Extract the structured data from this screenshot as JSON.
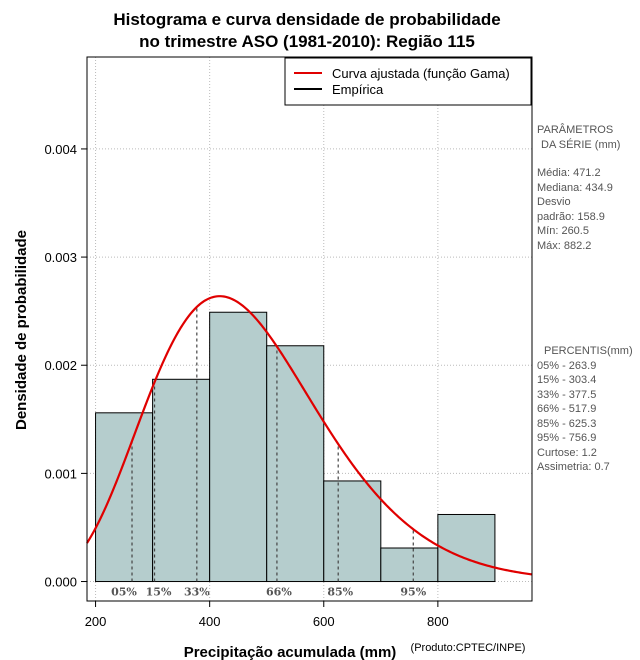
{
  "chart_data": {
    "type": "bar",
    "title_line1": "Histograma e curva densidade de probabilidade",
    "title_line2": "no trimestre ASO (1981-2010): Região 115",
    "xlabel": "Precipitação acumulada (mm)",
    "ylabel": "Densidade de probabilidade",
    "credit": "(Produto:CPTEC/INPE)",
    "xlim": [
      185,
      965
    ],
    "ylim": [
      -0.00018,
      0.00485
    ],
    "x_ticks": [
      200,
      400,
      600,
      800
    ],
    "x_tick_labels": [
      "200",
      "400",
      "600",
      "800"
    ],
    "y_ticks": [
      0.0,
      0.001,
      0.002,
      0.003,
      0.004
    ],
    "y_tick_labels": [
      "0.000",
      "0.001",
      "0.002",
      "0.003",
      "0.004"
    ],
    "bins": [
      {
        "from": 200,
        "to": 300,
        "density": 0.00156
      },
      {
        "from": 300,
        "to": 400,
        "density": 0.00187
      },
      {
        "from": 400,
        "to": 500,
        "density": 0.00249
      },
      {
        "from": 500,
        "to": 600,
        "density": 0.00218
      },
      {
        "from": 600,
        "to": 700,
        "density": 0.00093
      },
      {
        "from": 700,
        "to": 800,
        "density": 0.00031
      },
      {
        "from": 800,
        "to": 900,
        "density": 0.00062
      }
    ],
    "gamma_fit": {
      "mean": 471.2,
      "sd": 158.9
    },
    "percentile_lines": [
      {
        "label": "05%",
        "x": 263.9
      },
      {
        "label": "15%",
        "x": 303.4
      },
      {
        "label": "33%",
        "x": 377.5
      },
      {
        "label": "66%",
        "x": 517.9
      },
      {
        "label": "85%",
        "x": 625.3
      },
      {
        "label": "95%",
        "x": 756.9
      }
    ],
    "legend": [
      {
        "label": "Curva ajustada (função Gama)",
        "color": "#e00000"
      },
      {
        "label": "Empírica",
        "color": "#000000"
      }
    ],
    "legend_position": "top-right",
    "colors": {
      "bar_fill": "#b5cdcd",
      "curve": "#e00000",
      "grid": "#bbbbbb"
    }
  },
  "side_panel": {
    "params_title_1": "PARÂMETROS",
    "params_title_2": "DA SÉRIE (mm)",
    "media": "Média:  471.2",
    "mediana": "Mediana:  434.9",
    "desvio_1": "Desvio",
    "desvio_2": "padrão:  158.9",
    "min": "Mín:  260.5",
    "max": "Máx:  882.2",
    "percentis_title": "PERCENTIS(mm)",
    "p05": "05% -   263.9",
    "p15": "15% -   303.4",
    "p33": "33% -   377.5",
    "p66": "66% -   517.9",
    "p85": "85% -   625.3",
    "p95": "95% -   756.9",
    "curtose": "Curtose:   1.2",
    "assimetria": "Assimetria:   0.7"
  }
}
